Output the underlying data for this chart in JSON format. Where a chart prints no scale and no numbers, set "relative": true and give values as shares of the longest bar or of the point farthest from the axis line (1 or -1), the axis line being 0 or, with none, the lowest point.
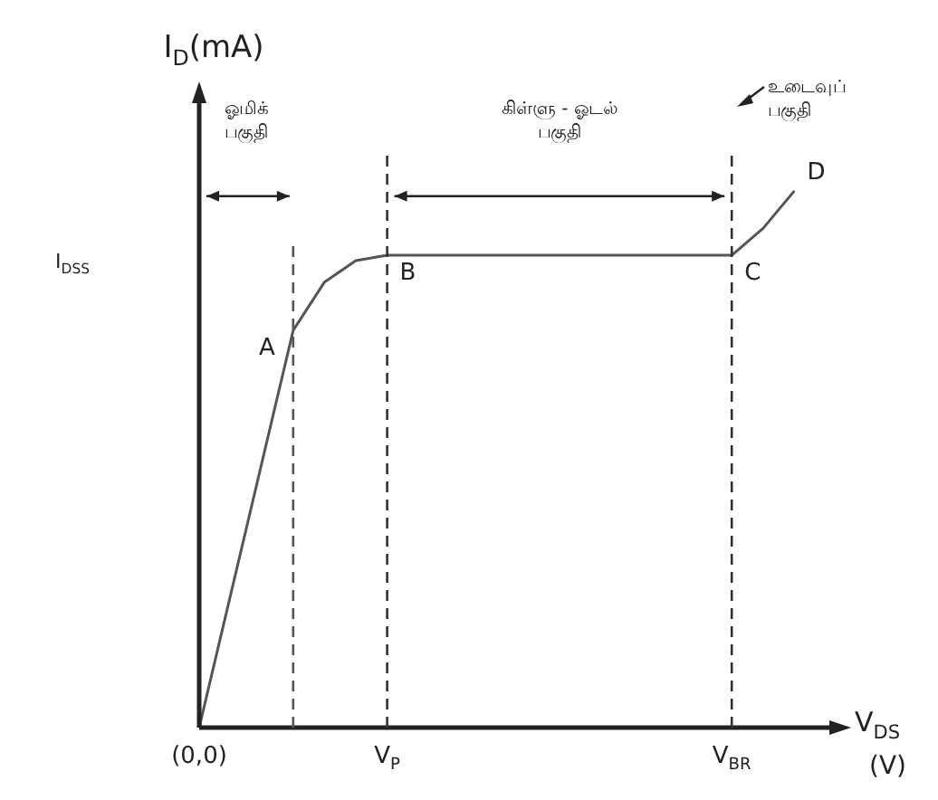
{
  "chart_data": {
    "type": "line",
    "relative": true,
    "ylabel": "I$_{D}$(mA)",
    "xlabel": "V$_{DS}$ (V)",
    "categories": [
      "(0,0)",
      null,
      null,
      null,
      null,
      null,
      "V$_{P}$",
      null,
      null,
      null,
      null,
      null,
      null,
      null,
      null,
      null,
      null,
      "V$_{BR}$",
      null,
      null,
      null
    ],
    "series": [
      {
        "color": "#555555",
        "values": [
          0,
          null,
          null,
          0.74,
          0.83,
          0.87,
          0.88,
          null,
          null,
          null,
          null,
          null,
          null,
          null,
          null,
          null,
          null,
          0.88,
          0.93,
          1,
          null
        ]
      }
    ],
    "ref_lines": [
      {
        "axis": "x",
        "value": "V$_{P}$",
        "line_style": "dashed",
        "color": "#333333"
      },
      {
        "axis": "x",
        "value": "V$_{BR}$",
        "line_style": "dashed",
        "color": "#333333"
      }
    ],
    "annotations": [
      "A",
      {
        "text": "B",
        "x": "V$_{P}$",
        "y": 0.88
      },
      {
        "text": "C",
        "x": "V$_{BR}$",
        "y": 0.88
      },
      "D",
      "I$_{DSS}$",
      "ஓமிக் பகுதி",
      "கிள்ளு - ஓடல் பகுதி",
      "உடைவுப் பகுதி"
    ],
    "grid": false,
    "legend": false,
    "marker": "none",
    "line_style": "solid"
  }
}
